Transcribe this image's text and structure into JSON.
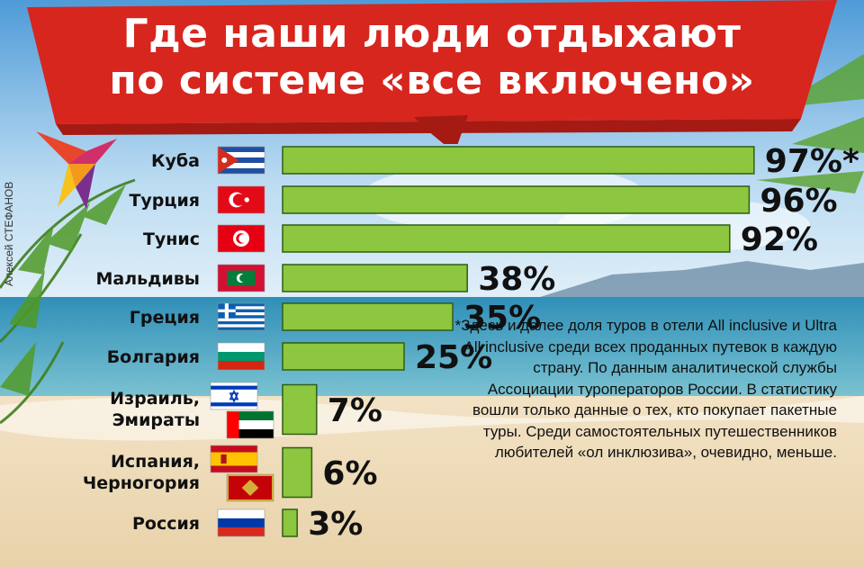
{
  "title": {
    "line1": "Где наши люди отдыхают",
    "line2": "по системе «все включено»"
  },
  "credit": "Алексей СТЕФАНОВ",
  "note": "*Здесь и далее доля туров в отели All inclusive и Ultra All inclusive среди всех проданных путевок в каждую страну. По данным аналитической службы Ассоциации туроператоров России. В статистику вошли только данные о тех, кто покупает пакетные туры. Среди самостоятельных путешественников любителей «ол инклюзива», очевидно, меньше.",
  "colors": {
    "bar": "#8dc63f",
    "banner": "#d7261e"
  },
  "chart_data": {
    "type": "bar",
    "orientation": "horizontal",
    "categories": [
      [
        "Куба"
      ],
      [
        "Турция"
      ],
      [
        "Тунис"
      ],
      [
        "Мальдивы"
      ],
      [
        "Греция"
      ],
      [
        "Болгария"
      ],
      [
        "Израиль,",
        "Эмираты"
      ],
      [
        "Испания,",
        "Черногория"
      ],
      [
        "Россия"
      ]
    ],
    "values": [
      97,
      96,
      92,
      38,
      35,
      25,
      7,
      6,
      3
    ],
    "value_labels": [
      "97%*",
      "96%",
      "92%",
      "38%",
      "35%",
      "25%",
      "7%",
      "6%",
      "3%"
    ],
    "flags": [
      [
        "cuba-flag"
      ],
      [
        "turkey-flag"
      ],
      [
        "tunisia-flag"
      ],
      [
        "maldives-flag"
      ],
      [
        "greece-flag"
      ],
      [
        "bulgaria-flag"
      ],
      [
        "israel-flag",
        "uae-flag"
      ],
      [
        "spain-flag",
        "montenegro-flag"
      ],
      [
        "russia-flag"
      ]
    ],
    "xlim": [
      0,
      100
    ],
    "grid": false,
    "legend": "none"
  }
}
